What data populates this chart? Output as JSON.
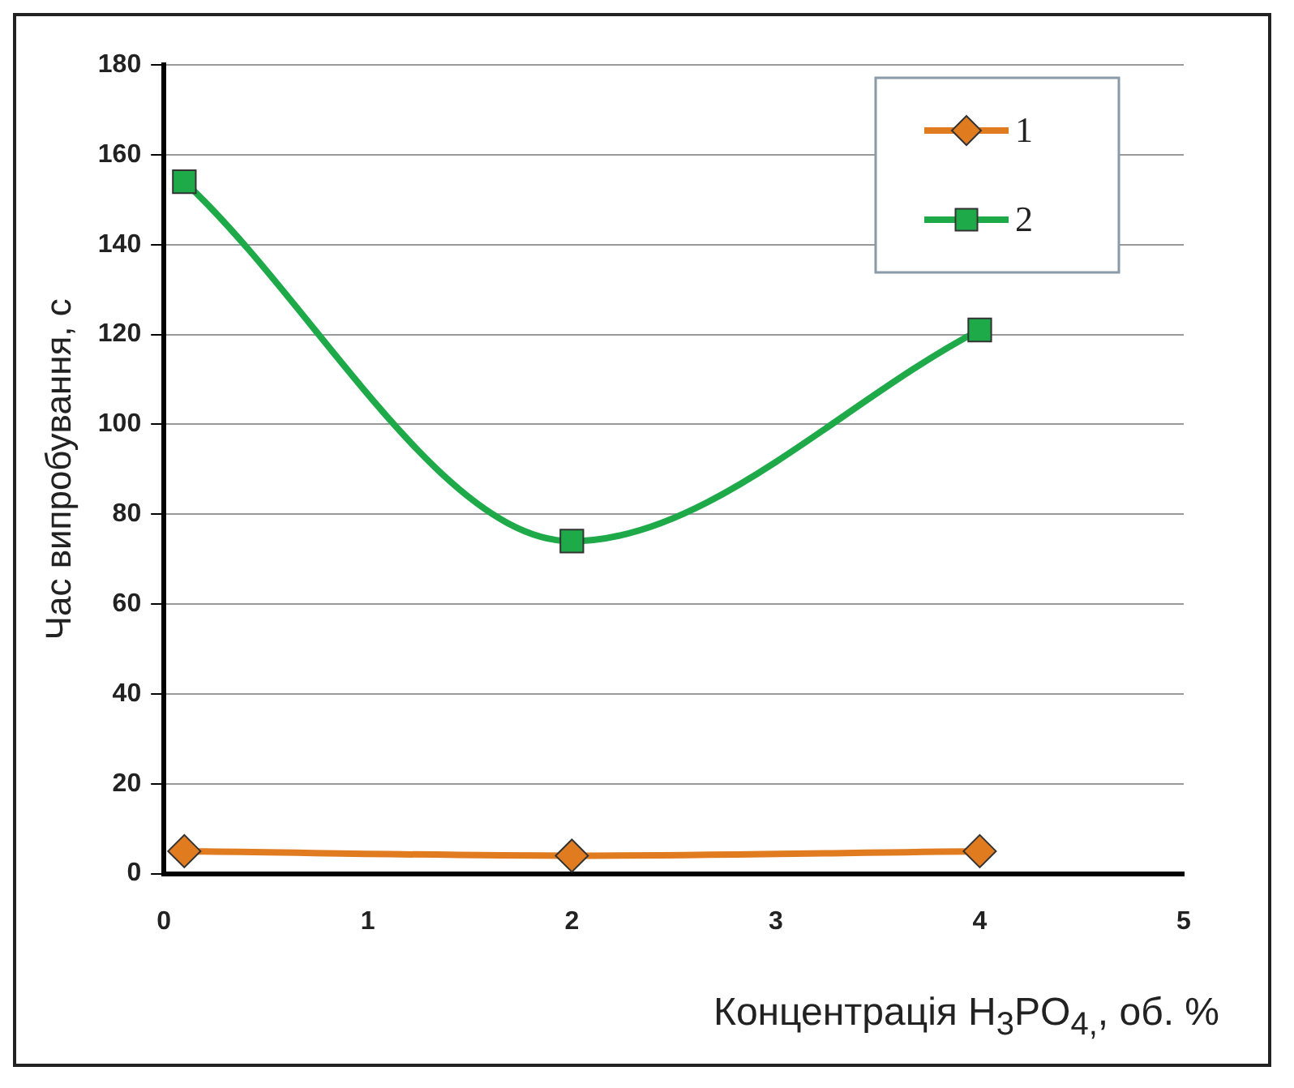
{
  "chart_data": {
    "type": "line",
    "xlabel": "Концентрація H$_{3}$PO$_{4,}$, об. %",
    "ylabel": "Час випробування, с",
    "x": [
      0.1,
      2,
      4
    ],
    "series": [
      {
        "name": "1",
        "color": "#e07b20",
        "values": [
          5,
          4,
          5
        ],
        "marker": "diamond"
      },
      {
        "name": "2",
        "color": "#1faa4a",
        "values": [
          154,
          74,
          121
        ],
        "marker": "square"
      }
    ],
    "xlim": [
      0,
      5
    ],
    "xticks": [
      0,
      1,
      2,
      3,
      4,
      5
    ],
    "ylim": [
      0,
      180
    ],
    "yticks": [
      0,
      20,
      40,
      60,
      80,
      100,
      120,
      140,
      160,
      180
    ],
    "grid": "y",
    "legend": "top right",
    "line_style": "solid"
  }
}
